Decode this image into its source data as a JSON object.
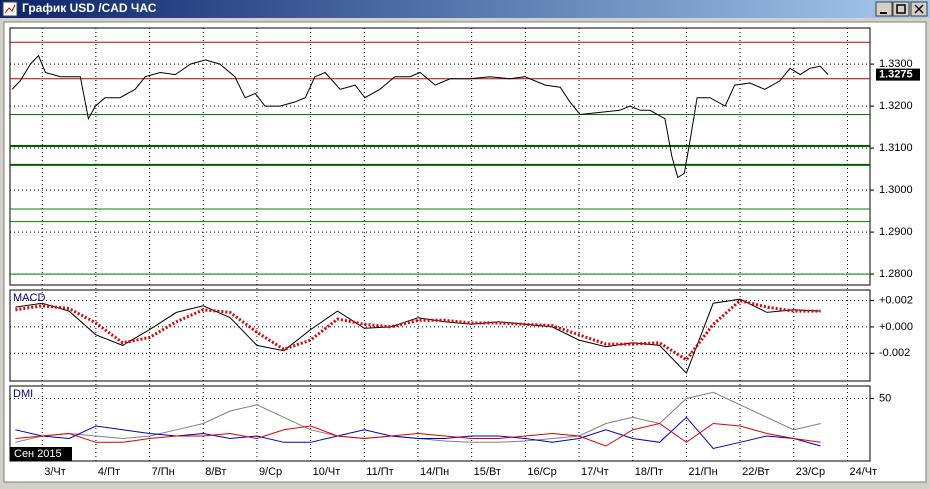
{
  "window": {
    "title": "График USD /CAD  ЧАС"
  },
  "chart_data": [
    {
      "type": "line",
      "label": "",
      "ylim": [
        1.2774,
        1.3386
      ],
      "xlim": [
        -0.6,
        15.42
      ],
      "yticks": [
        {
          "value": 1.33,
          "label": "1.3300"
        },
        {
          "value": 1.32,
          "label": "1.3200"
        },
        {
          "value": 1.31,
          "label": "1.3100"
        },
        {
          "value": 1.3,
          "label": "1.3000"
        },
        {
          "value": 1.29,
          "label": "1.2900"
        },
        {
          "value": 1.28,
          "label": "1.2800"
        }
      ],
      "last_price": 1.3275,
      "levels": [
        {
          "value": 1.3352,
          "color": "#c00000"
        },
        {
          "value": 1.3265,
          "color": "#c00000"
        },
        {
          "value": 1.318,
          "color": "#008000"
        },
        {
          "value": 1.3105,
          "color": "#006000"
        },
        {
          "value": 1.306,
          "color": "#006000"
        },
        {
          "value": 1.2955,
          "color": "#008000"
        },
        {
          "value": 1.2925,
          "color": "#008000"
        },
        {
          "value": 1.28,
          "color": "#008000"
        }
      ],
      "x": [
        -0.56,
        -0.41,
        -0.22,
        -0.07,
        0.06,
        0.34,
        0.71,
        0.86,
        0.99,
        1.17,
        1.45,
        1.73,
        1.92,
        2.2,
        2.48,
        2.76,
        3.04,
        3.31,
        3.59,
        3.78,
        3.97,
        4.15,
        4.43,
        4.71,
        4.9,
        5.08,
        5.27,
        5.55,
        5.83,
        6.01,
        6.29,
        6.57,
        6.85,
        7.04,
        7.32,
        7.6,
        7.97,
        8.34,
        8.72,
        8.99,
        9.37,
        9.65,
        9.83,
        10.02,
        10.39,
        10.76,
        10.95,
        11.14,
        11.32,
        11.6,
        11.73,
        11.84,
        11.96,
        12.07,
        12.2,
        12.44,
        12.72,
        12.9,
        13.18,
        13.46,
        13.74,
        13.93,
        14.12,
        14.3,
        14.49,
        14.64
      ],
      "series": [
        {
          "color": "#000000",
          "values": [
            1.324,
            1.326,
            1.33,
            1.332,
            1.328,
            1.327,
            1.327,
            1.317,
            1.32,
            1.322,
            1.322,
            1.324,
            1.327,
            1.328,
            1.3275,
            1.33,
            1.331,
            1.33,
            1.327,
            1.322,
            1.323,
            1.32,
            1.32,
            1.321,
            1.322,
            1.327,
            1.328,
            1.324,
            1.325,
            1.322,
            1.324,
            1.327,
            1.327,
            1.328,
            1.325,
            1.3265,
            1.3265,
            1.327,
            1.3265,
            1.327,
            1.325,
            1.3245,
            1.321,
            1.318,
            1.3185,
            1.319,
            1.32,
            1.319,
            1.319,
            1.317,
            1.308,
            1.303,
            1.304,
            1.312,
            1.322,
            1.322,
            1.32,
            1.325,
            1.3255,
            1.324,
            1.326,
            1.329,
            1.3275,
            1.329,
            1.3295,
            1.3275
          ]
        }
      ]
    },
    {
      "type": "line",
      "label": "MACD",
      "ylim": [
        -0.0041,
        0.0028
      ],
      "xlim": [
        -0.6,
        15.42
      ],
      "yticks": [
        {
          "value": 0.002,
          "label": "+0.002"
        },
        {
          "value": 0,
          "label": "+0.000"
        },
        {
          "value": -0.002,
          "label": "-0.002"
        }
      ],
      "x": [
        -0.5,
        0,
        0.5,
        1,
        1.5,
        2,
        2.5,
        3,
        3.5,
        4,
        4.5,
        5,
        5.5,
        6,
        6.5,
        7,
        7.5,
        8,
        8.5,
        9,
        9.5,
        10,
        10.5,
        11,
        11.5,
        12,
        12.5,
        13,
        13.5,
        14,
        14.5
      ],
      "series": [
        {
          "color": "#000000",
          "style": "solid",
          "values": [
            0.0015,
            0.0018,
            0.0012,
            -0.0006,
            -0.0014,
            -0.0002,
            0.0011,
            0.0016,
            0.0007,
            -0.0014,
            -0.0018,
            -0.0002,
            0.0012,
            -0.0001,
            0,
            0.0007,
            0.0004,
            0.0002,
            0.0004,
            0.0002,
            0,
            -0.001,
            -0.0015,
            -0.0012,
            -0.0014,
            -0.0035,
            0.0018,
            0.0021,
            0.0011,
            0.0013,
            0.0012
          ]
        },
        {
          "color": "#e00000",
          "style": "dotted",
          "values": [
            0.0013,
            0.0016,
            0.0014,
            0.0003,
            -0.0012,
            -0.0008,
            0.0004,
            0.0013,
            0.0011,
            -0.0004,
            -0.0017,
            -0.001,
            0.0006,
            0.0002,
            0,
            0.0005,
            0.0005,
            0.0003,
            0.0003,
            0.0002,
            0.0001,
            -0.0006,
            -0.0013,
            -0.0013,
            -0.0012,
            -0.0025,
            0.0002,
            0.002,
            0.0015,
            0.0012,
            0.0012
          ]
        }
      ]
    },
    {
      "type": "line",
      "label": "DMI",
      "ylim": [
        0,
        60
      ],
      "xlim": [
        -0.6,
        15.42
      ],
      "yticks": [
        50
      ],
      "period_label": "Сен 2015",
      "xticks": [
        {
          "value": 0,
          "label": "3/Чт"
        },
        {
          "value": 1,
          "label": "4/Пт"
        },
        {
          "value": 2,
          "label": "7/Пн"
        },
        {
          "value": 3,
          "label": "8/Вт"
        },
        {
          "value": 4,
          "label": "9/Ср"
        },
        {
          "value": 5,
          "label": "10/Чт"
        },
        {
          "value": 6,
          "label": "11/Пт"
        },
        {
          "value": 7,
          "label": "14/Пн"
        },
        {
          "value": 8,
          "label": "15/Вт"
        },
        {
          "value": 9,
          "label": "16/Ср"
        },
        {
          "value": 10,
          "label": "17/Чт"
        },
        {
          "value": 11,
          "label": "18/Пт"
        },
        {
          "value": 12,
          "label": "21/Пн"
        },
        {
          "value": 13,
          "label": "22/Вт"
        },
        {
          "value": 14,
          "label": "23/Ср"
        },
        {
          "value": 15,
          "label": "24/Чт"
        }
      ],
      "x": [
        -0.5,
        0,
        0.5,
        1,
        1.5,
        2,
        2.5,
        3,
        3.5,
        4,
        4.5,
        5,
        5.5,
        6,
        6.5,
        7,
        7.5,
        8,
        8.5,
        9,
        9.5,
        10,
        10.5,
        11,
        11.5,
        12,
        12.5,
        13,
        13.5,
        14,
        14.5
      ],
      "series": [
        {
          "color": "#808080",
          "style": "solid",
          "values": [
            15,
            20,
            22,
            20,
            18,
            20,
            25,
            30,
            40,
            45,
            35,
            25,
            20,
            18,
            20,
            18,
            16,
            15,
            15,
            16,
            18,
            20,
            30,
            35,
            30,
            50,
            55,
            45,
            35,
            25,
            30
          ]
        },
        {
          "color": "#0000c0",
          "style": "solid",
          "values": [
            25,
            20,
            18,
            28,
            25,
            22,
            20,
            22,
            18,
            20,
            15,
            15,
            20,
            25,
            20,
            18,
            18,
            20,
            20,
            18,
            15,
            18,
            25,
            18,
            15,
            35,
            10,
            15,
            20,
            18,
            12
          ]
        },
        {
          "color": "#e00000",
          "style": "solid",
          "values": [
            18,
            20,
            22,
            15,
            15,
            18,
            20,
            20,
            22,
            18,
            25,
            28,
            20,
            18,
            20,
            22,
            20,
            18,
            18,
            20,
            22,
            20,
            12,
            25,
            30,
            15,
            30,
            28,
            22,
            18,
            15
          ]
        }
      ]
    }
  ]
}
